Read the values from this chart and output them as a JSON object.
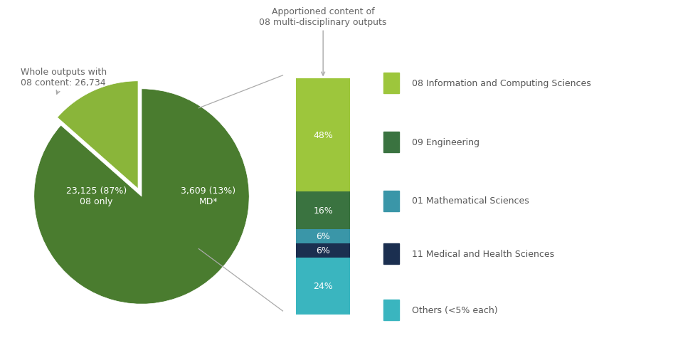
{
  "pie_values": [
    23125,
    3609
  ],
  "pie_colors": [
    "#4a7c2f",
    "#8ab53a"
  ],
  "pie_explode": [
    0,
    0.08
  ],
  "pie_startangle": 90,
  "pie_label_08only": "23,125 (87%)\n08 only",
  "pie_label_md": "3,609 (13%)\nMD*",
  "bar_values": [
    48,
    16,
    6,
    6,
    24
  ],
  "bar_labels": [
    "48%",
    "16%",
    "6%",
    "6%",
    "24%"
  ],
  "bar_colors": [
    "#9dc63c",
    "#3a7340",
    "#3a96a8",
    "#1b2f50",
    "#3ab5bf"
  ],
  "legend_labels": [
    "08 Information and Computing Sciences",
    "09 Engineering",
    "01 Mathematical Sciences",
    "11 Medical and Health Sciences",
    "Others (<5% each)"
  ],
  "legend_colors": [
    "#9dc63c",
    "#3a7340",
    "#3a96a8",
    "#1b2f50",
    "#3ab5bf"
  ],
  "annotation_pie": "Whole outputs with\n08 content: 26,734",
  "annotation_bar": "Apportioned content of\n08 multi-disciplinary outputs",
  "bg_color": "#ffffff",
  "text_color": "#666666"
}
